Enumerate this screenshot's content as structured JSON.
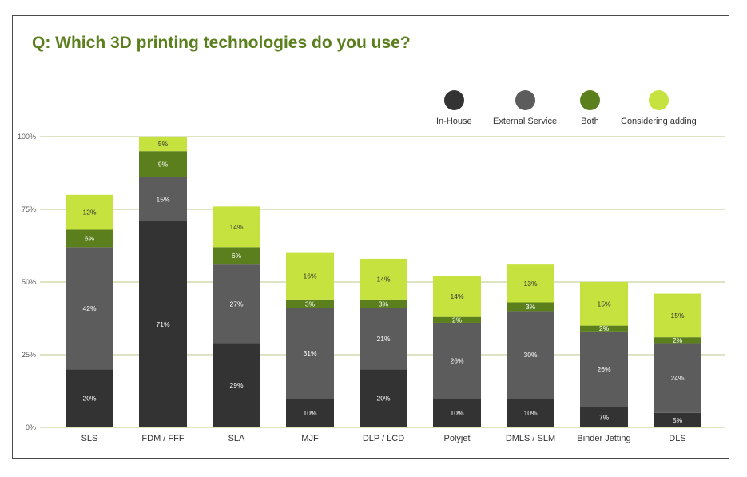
{
  "title": "Q: Which 3D printing technologies do you use?",
  "colors": {
    "in_house": "#333333",
    "external_service": "#5c5c5c",
    "both": "#5a7f1c",
    "considering": "#c5e23f",
    "grid": "#b8c98a",
    "title": "#5a7f1c"
  },
  "legend": [
    {
      "label": "In-House",
      "color": "#333333"
    },
    {
      "label": "External Service",
      "color": "#5c5c5c"
    },
    {
      "label": "Both",
      "color": "#5a7f1c"
    },
    {
      "label": "Considering adding",
      "color": "#c5e23f"
    }
  ],
  "chart_data": {
    "type": "bar",
    "stacked": true,
    "title": "Q: Which 3D printing technologies do you use?",
    "categories": [
      "SLS",
      "FDM / FFF",
      "SLA",
      "MJF",
      "DLP / LCD",
      "Polyjet",
      "DMLS / SLM",
      "Binder Jetting",
      "DLS"
    ],
    "series": [
      {
        "name": "In-House",
        "values": [
          20,
          71,
          29,
          10,
          20,
          10,
          10,
          7,
          5
        ]
      },
      {
        "name": "External Service",
        "values": [
          42,
          15,
          27,
          31,
          21,
          26,
          30,
          26,
          24
        ]
      },
      {
        "name": "Both",
        "values": [
          6,
          9,
          6,
          3,
          3,
          2,
          3,
          2,
          2
        ]
      },
      {
        "name": "Considering adding",
        "values": [
          12,
          5,
          14,
          16,
          14,
          14,
          13,
          15,
          15
        ]
      }
    ],
    "ylim": [
      0,
      100
    ],
    "yticks": [
      "0%",
      "25%",
      "50%",
      "75%",
      "100%"
    ],
    "ytick_values": [
      0,
      25,
      50,
      75,
      100
    ],
    "value_suffix": "%",
    "grid": true,
    "legend_position": "top-right"
  }
}
